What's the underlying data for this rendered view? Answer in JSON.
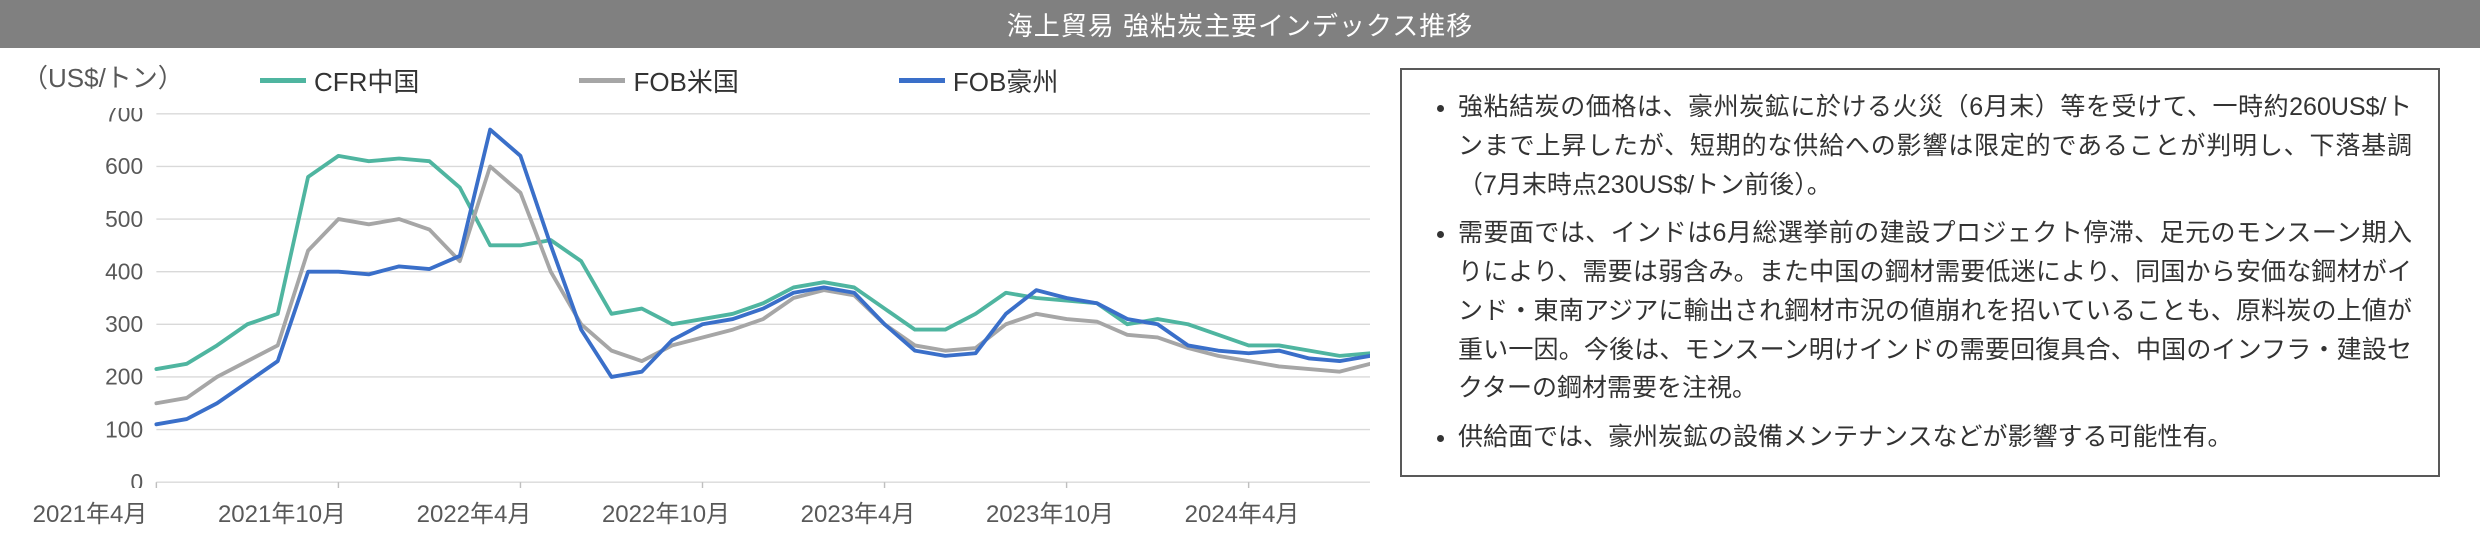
{
  "title": "海上貿易 強粘炭主要インデックス推移",
  "chart": {
    "type": "line",
    "y_label": "（US$/トン）",
    "y_axis": {
      "min": 0,
      "max": 700,
      "tick_step": 100,
      "tick_labels": [
        "0",
        "100",
        "200",
        "300",
        "400",
        "500",
        "600",
        "700"
      ],
      "grid_color": "#d9d9d9",
      "axis_color": "#bfbfbf",
      "label_color": "#595959",
      "label_fontsize": 24
    },
    "x_axis": {
      "min_index": 0,
      "max_index": 40,
      "tick_indices": [
        0,
        6,
        12,
        18,
        24,
        30,
        36
      ],
      "tick_labels": [
        "2021年4月",
        "2021年10月",
        "2022年4月",
        "2022年10月",
        "2023年4月",
        "2023年10月",
        "2024年4月"
      ],
      "label_color": "#595959",
      "label_fontsize": 24
    },
    "legend_items": [
      {
        "label": "CFR中国",
        "color": "#4fb5a0"
      },
      {
        "label": "FOB米国",
        "color": "#a6a6a6"
      },
      {
        "label": "FOB豪州",
        "color": "#3a6fc9"
      }
    ],
    "line_width": 4,
    "background_color": "#ffffff",
    "series": [
      {
        "name": "CFR中国",
        "color": "#4fb5a0",
        "values": [
          215,
          225,
          260,
          300,
          320,
          580,
          620,
          610,
          615,
          610,
          560,
          450,
          450,
          460,
          420,
          320,
          330,
          300,
          310,
          320,
          340,
          370,
          380,
          370,
          330,
          290,
          290,
          320,
          360,
          350,
          345,
          340,
          300,
          310,
          300,
          280,
          260,
          260,
          250,
          240,
          245
        ]
      },
      {
        "name": "FOB米国",
        "color": "#a6a6a6",
        "values": [
          150,
          160,
          200,
          230,
          260,
          440,
          500,
          490,
          500,
          480,
          420,
          600,
          550,
          400,
          300,
          250,
          230,
          260,
          275,
          290,
          310,
          350,
          365,
          355,
          300,
          260,
          250,
          255,
          300,
          320,
          310,
          305,
          280,
          275,
          255,
          240,
          230,
          220,
          215,
          210,
          225
        ]
      },
      {
        "name": "FOB豪州",
        "color": "#3a6fc9",
        "values": [
          110,
          120,
          150,
          190,
          230,
          400,
          400,
          395,
          410,
          405,
          430,
          670,
          620,
          450,
          290,
          200,
          210,
          270,
          300,
          310,
          330,
          360,
          370,
          360,
          300,
          250,
          240,
          245,
          320,
          365,
          350,
          340,
          310,
          300,
          260,
          250,
          245,
          250,
          235,
          230,
          240
        ]
      }
    ]
  },
  "notes": {
    "border_color": "#595959",
    "text_color": "#333333",
    "fontsize": 25,
    "bullets": [
      "強粘結炭の価格は、豪州炭鉱に於ける火災（6月末）等を受けて、一時約260US$/トンまで上昇したが、短期的な供給への影響は限定的であることが判明し、下落基調（7月末時点230US$/トン前後）。",
      "需要面では、インドは6月総選挙前の建設プロジェクト停滞、足元のモンスーン期入りにより、需要は弱含み。また中国の鋼材需要低迷により、同国から安価な鋼材がインド・東南アジアに輸出され鋼材市況の値崩れを招いていることも、原料炭の上値が重い一因。今後は、モンスーン明けインドの需要回復具合、中国のインフラ・建設セクターの鋼材需要を注視。",
      "供給面では、豪州炭鉱の設備メンテナンスなどが影響する可能性有。"
    ]
  }
}
